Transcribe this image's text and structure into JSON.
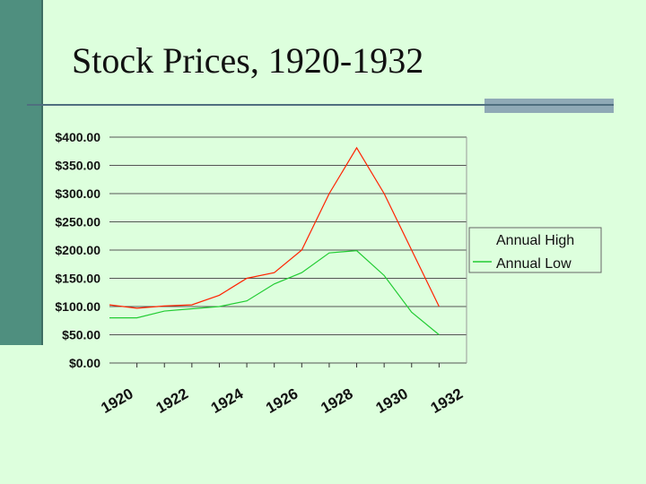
{
  "slide": {
    "title": "Stock Prices, 1920-1932"
  },
  "colors": {
    "background": "#ddffdd",
    "accent_bar": "#4f8f7f",
    "high_series": "#ff2200",
    "low_series": "#22cc33"
  },
  "chart_data": {
    "type": "line",
    "title": "",
    "xlabel": "",
    "ylabel": "",
    "ylim": [
      0,
      400
    ],
    "yticks": [
      "$0.00",
      "$50.00",
      "$100.00",
      "$150.00",
      "$200.00",
      "$250.00",
      "$300.00",
      "$350.00",
      "$400.00"
    ],
    "ytick_values": [
      0,
      50,
      100,
      150,
      200,
      250,
      300,
      350,
      400
    ],
    "xlim": [
      1919.5,
      1932.5
    ],
    "xticks": [
      "1920",
      "1922",
      "1924",
      "1926",
      "1928",
      "1930",
      "1932"
    ],
    "xtick_values": [
      1920,
      1922,
      1924,
      1926,
      1928,
      1930,
      1932
    ],
    "grid": "horizontal",
    "legend_position": "right",
    "x": [
      1919.5,
      1920.5,
      1921.5,
      1922.5,
      1923.5,
      1924.5,
      1925.5,
      1926.5,
      1927.5,
      1928.5,
      1929.5,
      1930.5,
      1931.5,
      1932.5
    ],
    "series": [
      {
        "name": "Annual High",
        "color": "#ff2200",
        "values": [
          103,
          97,
          101,
          103,
          120,
          150,
          160,
          200,
          300,
          381,
          300,
          200,
          100,
          null
        ]
      },
      {
        "name": "Annual Low",
        "color": "#22cc33",
        "values": [
          80,
          80,
          92,
          96,
          100,
          110,
          140,
          160,
          195,
          199,
          155,
          90,
          50,
          null
        ]
      }
    ]
  }
}
